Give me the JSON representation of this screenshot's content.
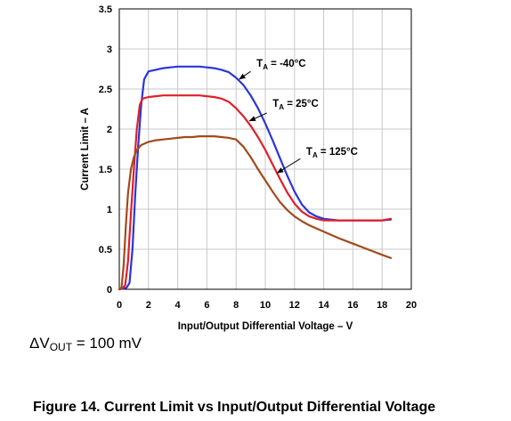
{
  "chart_data": {
    "type": "line",
    "xlabel": "Input/Output Differential Voltage – V",
    "ylabel": "Current Limit – A",
    "xlim": [
      0,
      20
    ],
    "ylim": [
      0,
      3.5
    ],
    "xticks": [
      "0",
      "2",
      "4",
      "6",
      "8",
      "10",
      "12",
      "14",
      "16",
      "18",
      "20"
    ],
    "yticks": [
      "0",
      "0.5",
      "1",
      "1.5",
      "2",
      "2.5",
      "3",
      "3.5"
    ],
    "grid": true,
    "series": [
      {
        "name_main": "T",
        "name_sub": "A",
        "name_rest": " = -40°C",
        "color": "#2b35d9",
        "label_pos": [
          9.4,
          2.78
        ],
        "arrow": [
          [
            9.0,
            2.72
          ],
          [
            8.2,
            2.62
          ]
        ],
        "x": [
          0,
          0.3,
          0.5,
          0.7,
          0.9,
          1.1,
          1.3,
          1.5,
          1.7,
          2,
          2.5,
          3,
          3.5,
          4,
          4.5,
          5,
          5.5,
          6,
          6.5,
          7,
          7.5,
          8,
          8.5,
          9,
          9.5,
          10,
          10.5,
          11,
          11.5,
          12,
          12.5,
          13,
          13.5,
          14,
          15,
          16,
          17,
          18,
          18.6
        ],
        "y": [
          0,
          0.01,
          0.02,
          0.08,
          0.5,
          1.2,
          1.8,
          2.3,
          2.62,
          2.72,
          2.74,
          2.76,
          2.77,
          2.78,
          2.78,
          2.78,
          2.78,
          2.77,
          2.76,
          2.74,
          2.71,
          2.64,
          2.55,
          2.42,
          2.26,
          2.07,
          1.86,
          1.64,
          1.42,
          1.22,
          1.06,
          0.96,
          0.91,
          0.88,
          0.86,
          0.86,
          0.86,
          0.86,
          0.87
        ]
      },
      {
        "name_main": "T",
        "name_sub": "A",
        "name_rest": " = 25°C",
        "color": "#e01f2a",
        "label_pos": [
          10.5,
          2.28
        ],
        "arrow": [
          [
            10.1,
            2.2
          ],
          [
            8.9,
            2.1
          ]
        ],
        "x": [
          0,
          0.2,
          0.4,
          0.6,
          0.8,
          1.0,
          1.2,
          1.4,
          1.6,
          2,
          2.5,
          3,
          3.5,
          4,
          4.5,
          5,
          5.5,
          6,
          6.5,
          7,
          7.5,
          8,
          8.5,
          9,
          9.5,
          10,
          10.5,
          11,
          11.5,
          12,
          12.5,
          13,
          13.5,
          14,
          15,
          16,
          17,
          18,
          18.6
        ],
        "y": [
          0,
          0.01,
          0.05,
          0.35,
          0.95,
          1.5,
          2.0,
          2.3,
          2.38,
          2.4,
          2.41,
          2.42,
          2.42,
          2.42,
          2.42,
          2.42,
          2.42,
          2.41,
          2.4,
          2.38,
          2.34,
          2.26,
          2.16,
          2.04,
          1.9,
          1.74,
          1.56,
          1.38,
          1.21,
          1.07,
          0.97,
          0.91,
          0.88,
          0.86,
          0.86,
          0.86,
          0.86,
          0.86,
          0.88
        ]
      },
      {
        "name_main": "T",
        "name_sub": "A",
        "name_rest": " = 125°C",
        "color": "#a24a1d",
        "label_pos": [
          12.8,
          1.68
        ],
        "arrow": [
          [
            12.4,
            1.63
          ],
          [
            10.8,
            1.45
          ]
        ],
        "x": [
          0,
          0.15,
          0.3,
          0.45,
          0.6,
          0.8,
          1.0,
          1.2,
          1.5,
          2,
          2.5,
          3,
          3.5,
          4,
          4.5,
          5,
          5.5,
          6,
          6.5,
          7,
          7.5,
          8,
          8.5,
          9,
          9.5,
          10,
          10.5,
          11,
          11.5,
          12,
          12.5,
          13,
          14,
          15,
          16,
          17,
          18,
          18.6
        ],
        "y": [
          0,
          0.02,
          0.3,
          0.8,
          1.2,
          1.5,
          1.65,
          1.74,
          1.8,
          1.84,
          1.86,
          1.87,
          1.88,
          1.89,
          1.9,
          1.9,
          1.91,
          1.91,
          1.91,
          1.9,
          1.89,
          1.87,
          1.78,
          1.65,
          1.5,
          1.36,
          1.22,
          1.09,
          0.99,
          0.91,
          0.85,
          0.8,
          0.72,
          0.64,
          0.57,
          0.5,
          0.43,
          0.39
        ]
      }
    ]
  },
  "note": {
    "prefix": "ΔV",
    "sub": "OUT",
    "suffix": " = 100 mV"
  },
  "caption": "Figure 14. Current Limit vs Input/Output Differential Voltage"
}
